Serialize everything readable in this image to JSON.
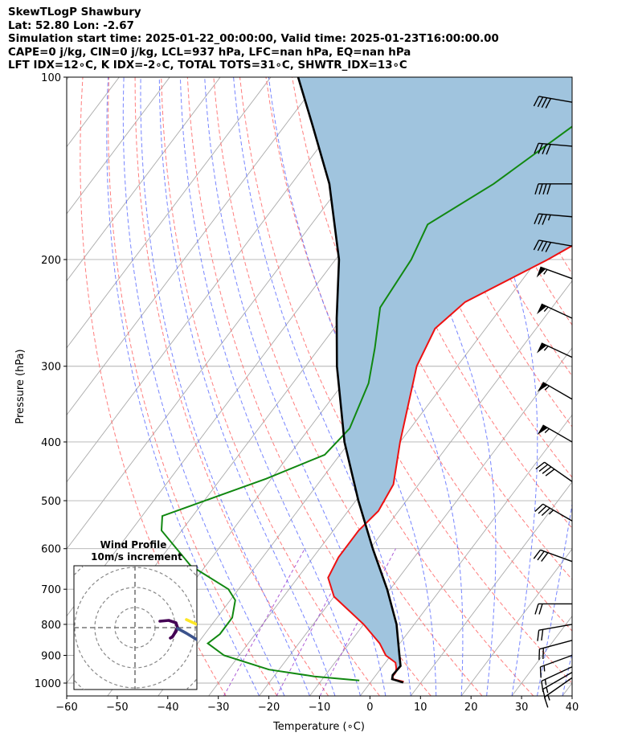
{
  "header": {
    "line1": "SkewTLogP Shawbury",
    "line2": "Lat: 52.80   Lon: -2.67",
    "line3": "Simulation start time: 2025-01-22_00:00:00, Valid time: 2025-01-23T16:00:00.00",
    "line4": "CAPE=0 j/kg, CIN=0 j/kg, LCL=937 hPa, LFC=nan hPa, EQ=nan hPa",
    "line5": "LFT IDX=12∘C, K IDX=-2∘C, TOTAL TOTS=31∘C, SHWTR_IDX=13∘C"
  },
  "chart_data": {
    "type": "line",
    "title": "",
    "xlabel": "Temperature (∘C)",
    "ylabel": "Pressure (hPa)",
    "xlim": [
      -60,
      40
    ],
    "ylim": [
      1050,
      100
    ],
    "y_scale": "log",
    "x_ticks": [
      "−60",
      "−50",
      "−40",
      "−30",
      "−20",
      "−10",
      "0",
      "10",
      "20",
      "30",
      "40"
    ],
    "x_tick_values": [
      -60,
      -50,
      -40,
      -30,
      -20,
      -10,
      0,
      10,
      20,
      30,
      40
    ],
    "y_ticks": [
      "100",
      "200",
      "300",
      "400",
      "500",
      "600",
      "700",
      "800",
      "900",
      "1000"
    ],
    "y_tick_values": [
      100,
      200,
      300,
      400,
      500,
      600,
      700,
      800,
      900,
      1000
    ],
    "series": [
      {
        "role": "temperature",
        "color": "#ee1111",
        "points": [
          [
            100,
            -11
          ],
          [
            125,
            -10
          ],
          [
            150,
            -12.5
          ],
          [
            175,
            -21
          ],
          [
            200,
            -28
          ],
          [
            235,
            -38
          ],
          [
            260,
            -40
          ],
          [
            300,
            -38
          ],
          [
            400,
            -30
          ],
          [
            470,
            -25
          ],
          [
            520,
            -24
          ],
          [
            560,
            -25
          ],
          [
            620,
            -25
          ],
          [
            670,
            -24
          ],
          [
            720,
            -20
          ],
          [
            800,
            -10
          ],
          [
            860,
            -4
          ],
          [
            900,
            -1
          ],
          [
            925,
            2
          ],
          [
            945,
            3
          ],
          [
            960,
            3.5
          ],
          [
            975,
            3.5
          ],
          [
            985,
            4
          ],
          [
            995,
            6.5
          ]
        ]
      },
      {
        "role": "dewpoint",
        "color": "#118811",
        "points": [
          [
            100,
            -37
          ],
          [
            150,
            -50
          ],
          [
            175,
            -57
          ],
          [
            200,
            -55
          ],
          [
            240,
            -54
          ],
          [
            280,
            -49
          ],
          [
            320,
            -45
          ],
          [
            380,
            -42
          ],
          [
            420,
            -43
          ],
          [
            460,
            -51
          ],
          [
            530,
            -66
          ],
          [
            560,
            -64
          ],
          [
            640,
            -53
          ],
          [
            700,
            -42
          ],
          [
            730,
            -39
          ],
          [
            780,
            -37
          ],
          [
            830,
            -37
          ],
          [
            860,
            -38
          ],
          [
            900,
            -33
          ],
          [
            950,
            -22
          ],
          [
            975,
            -12
          ],
          [
            990,
            -2.5
          ]
        ]
      },
      {
        "role": "parcel",
        "color": "#000000",
        "points": [
          [
            100,
            -104.6
          ],
          [
            120,
            -94.6
          ],
          [
            150,
            -82.5
          ],
          [
            200,
            -69.3
          ],
          [
            250,
            -61
          ],
          [
            300,
            -53.8
          ],
          [
            400,
            -41
          ],
          [
            500,
            -29.5
          ],
          [
            600,
            -19.5
          ],
          [
            700,
            -10.6
          ],
          [
            800,
            -3.5
          ],
          [
            900,
            1.7
          ],
          [
            937,
            3.5
          ],
          [
            970,
            3.3
          ],
          [
            985,
            3.8
          ],
          [
            998,
            6.5
          ]
        ]
      }
    ],
    "cape_cin_shading": "#a0c4de",
    "wind_barbs": {
      "pressures": [
        110,
        130,
        150,
        170,
        190,
        215,
        250,
        290,
        340,
        400,
        465,
        540,
        630,
        740,
        800,
        850,
        900,
        940,
        960,
        980
      ],
      "direction_deg": [
        280,
        275,
        270,
        275,
        280,
        290,
        295,
        295,
        300,
        300,
        305,
        300,
        290,
        270,
        260,
        255,
        250,
        245,
        240,
        235
      ],
      "speed_kt": [
        40,
        40,
        40,
        35,
        40,
        55,
        55,
        55,
        55,
        55,
        40,
        35,
        30,
        20,
        20,
        20,
        15,
        15,
        15,
        15
      ]
    },
    "inset": {
      "title": "Wind Profile",
      "subtitle": "10m/s increment",
      "rings": 4,
      "hodograph_colormap": [
        "#440154",
        "#3b528b",
        "#21918c",
        "#5ec962",
        "#fde725"
      ]
    },
    "grid": true,
    "background_lines": {
      "isotherms": "#aaaaaa",
      "dry_adiabats": "#ff6666",
      "moist_adiabats": "#5566ff",
      "mixing_ratio": "#9933cc"
    }
  }
}
